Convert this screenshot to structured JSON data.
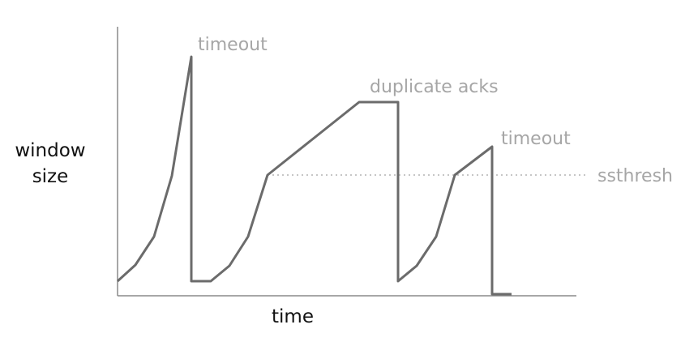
{
  "axes": {
    "y_label_line1": "window",
    "y_label_line2": "size",
    "x_label": "time"
  },
  "annotations": {
    "timeout_first": "timeout",
    "duplicate_acks": "duplicate acks",
    "timeout_second": "timeout",
    "ssthresh": "ssthresh"
  },
  "colors": {
    "window_line": "#6b6b6b",
    "annotation_text": "#a6a6a6",
    "axis": "#8a8a8a",
    "label_text": "#111111"
  }
}
